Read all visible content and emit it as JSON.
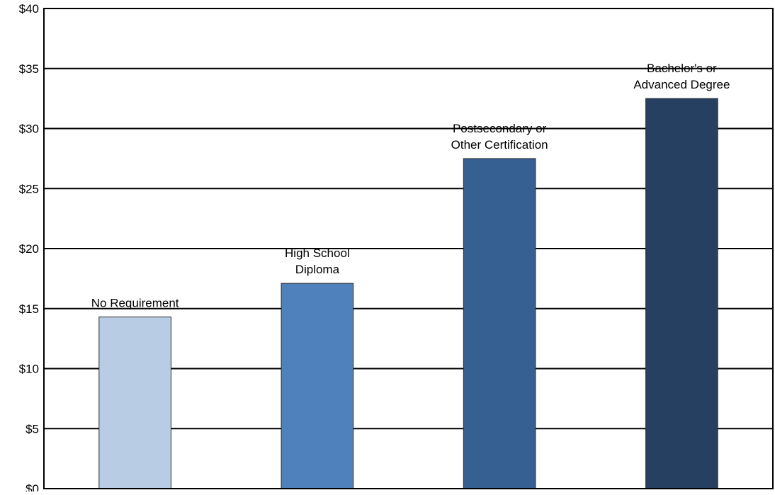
{
  "chart_data": {
    "type": "bar",
    "categories": [
      [
        "No Requirement"
      ],
      [
        "High School",
        "Diploma"
      ],
      [
        "Postsecondary or",
        "Other Certification"
      ],
      [
        "Bachelor's or",
        "Advanced Degree"
      ]
    ],
    "values": [
      14.3,
      17.1,
      27.5,
      32.5
    ],
    "bar_colors": [
      "#b8cce4",
      "#4f81bd",
      "#366092",
      "#254061"
    ],
    "ylim": [
      0,
      40
    ],
    "yticks": [
      0,
      5,
      10,
      15,
      20,
      25,
      30,
      35,
      40
    ],
    "ytick_labels": [
      "$0",
      "$5",
      "$10",
      "$15",
      "$20",
      "$25",
      "$30",
      "$35",
      "$40"
    ],
    "grid": true,
    "label_placement": "above-bar"
  }
}
